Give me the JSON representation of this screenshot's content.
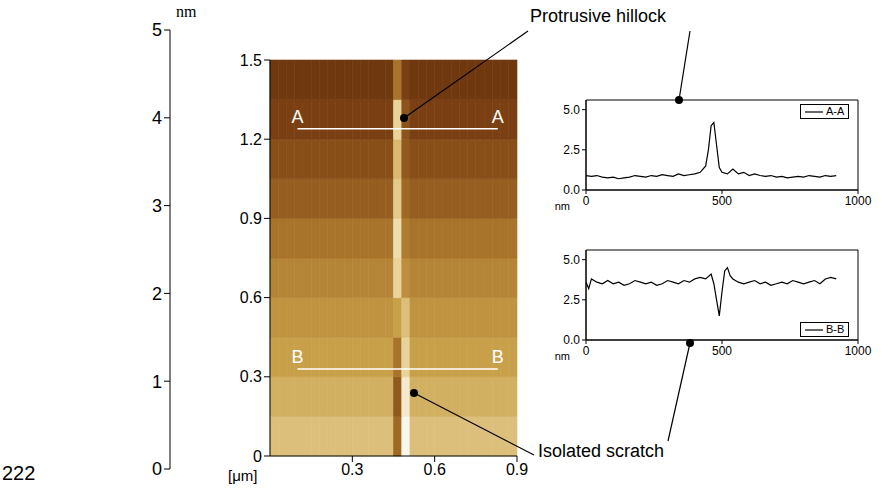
{
  "line_number": "222",
  "chart_data": [
    {
      "type": "heatmap",
      "xlabel": "[μm]",
      "xlim": [
        0,
        0.9
      ],
      "ylim": [
        0,
        1.5
      ],
      "xticks": [
        0.3,
        0.6,
        0.9
      ],
      "yticks": [
        0,
        0.3,
        0.6,
        0.9,
        1.2,
        1.5
      ],
      "x_edges": [
        0,
        0.03,
        0.06,
        0.09,
        0.12,
        0.15,
        0.18,
        0.21,
        0.24,
        0.27,
        0.3,
        0.33,
        0.36,
        0.39,
        0.42,
        0.45,
        0.48,
        0.51,
        0.54,
        0.57,
        0.6,
        0.63,
        0.66,
        0.69,
        0.72,
        0.75,
        0.78,
        0.81,
        0.84,
        0.87,
        0.9
      ],
      "y_edges": [
        0,
        0.15,
        0.3,
        0.45,
        0.6,
        0.75,
        0.9,
        1.05,
        1.2,
        1.35,
        1.5
      ],
      "cells": [
        [
          3.6,
          3.6,
          3.6,
          3.6,
          3.6,
          3.6,
          3.6,
          3.6,
          3.6,
          3.6,
          3.6,
          3.6,
          3.6,
          3.6,
          3.6,
          1.8,
          4.8,
          3.6,
          3.6,
          3.6,
          3.6,
          3.6,
          3.6,
          3.6,
          3.6,
          3.6,
          3.6,
          3.6,
          3.6,
          3.6
        ],
        [
          3.3,
          3.3,
          3.3,
          3.3,
          3.3,
          3.3,
          3.3,
          3.3,
          3.3,
          3.3,
          3.3,
          3.3,
          3.3,
          3.3,
          3.3,
          1.5,
          4.5,
          3.3,
          3.3,
          3.3,
          3.3,
          3.3,
          3.3,
          3.3,
          3.3,
          3.3,
          3.3,
          3.3,
          3.3,
          3.3
        ],
        [
          3.0,
          3.0,
          3.0,
          3.0,
          3.0,
          3.0,
          3.0,
          3.0,
          3.0,
          3.0,
          3.0,
          3.0,
          3.0,
          3.0,
          3.0,
          2.0,
          4.0,
          3.0,
          3.0,
          3.0,
          3.0,
          3.0,
          3.0,
          3.0,
          3.0,
          3.0,
          3.0,
          3.0,
          3.0,
          3.0
        ],
        [
          2.7,
          2.7,
          2.7,
          2.7,
          2.7,
          2.7,
          2.7,
          2.7,
          2.7,
          2.7,
          2.7,
          2.7,
          2.7,
          2.7,
          2.7,
          3.0,
          3.6,
          2.7,
          2.7,
          2.7,
          2.7,
          2.7,
          2.7,
          2.7,
          2.7,
          2.7,
          2.7,
          2.7,
          2.7,
          2.7
        ],
        [
          2.4,
          2.4,
          2.4,
          2.4,
          2.4,
          2.4,
          2.4,
          2.4,
          2.4,
          2.4,
          2.4,
          2.4,
          2.4,
          2.4,
          2.4,
          4.0,
          2.6,
          2.4,
          2.4,
          2.4,
          2.4,
          2.4,
          2.4,
          2.4,
          2.4,
          2.4,
          2.4,
          2.4,
          2.4,
          2.4
        ],
        [
          2.0,
          2.0,
          2.0,
          2.0,
          2.0,
          2.0,
          2.0,
          2.0,
          2.0,
          2.0,
          2.0,
          2.0,
          2.0,
          2.0,
          2.0,
          4.2,
          2.2,
          2.0,
          2.0,
          2.0,
          2.0,
          2.0,
          2.0,
          2.0,
          2.0,
          2.0,
          2.0,
          2.0,
          2.0,
          2.0
        ],
        [
          1.6,
          1.6,
          1.6,
          1.6,
          1.6,
          1.6,
          1.6,
          1.6,
          1.6,
          1.6,
          1.6,
          1.6,
          1.6,
          1.6,
          1.6,
          3.8,
          1.8,
          1.6,
          1.6,
          1.6,
          1.6,
          1.6,
          1.6,
          1.6,
          1.6,
          1.6,
          1.6,
          1.6,
          1.6,
          1.6
        ],
        [
          1.3,
          1.3,
          1.3,
          1.3,
          1.3,
          1.3,
          1.3,
          1.3,
          1.3,
          1.3,
          1.3,
          1.3,
          1.3,
          1.3,
          1.3,
          3.5,
          1.5,
          1.3,
          1.3,
          1.3,
          1.3,
          1.3,
          1.3,
          1.3,
          1.3,
          1.3,
          1.3,
          1.3,
          1.3,
          1.3
        ],
        [
          1.0,
          1.0,
          1.0,
          1.0,
          1.0,
          1.0,
          1.0,
          1.0,
          1.0,
          1.0,
          1.0,
          1.0,
          1.0,
          1.0,
          1.0,
          4.0,
          1.4,
          1.0,
          1.0,
          1.0,
          1.0,
          1.0,
          1.0,
          1.0,
          1.0,
          1.0,
          1.0,
          1.0,
          1.0,
          1.0
        ],
        [
          0.8,
          0.8,
          0.8,
          0.8,
          0.8,
          0.8,
          0.8,
          0.8,
          0.8,
          0.8,
          0.8,
          0.8,
          0.8,
          0.8,
          0.8,
          2.0,
          1.0,
          0.8,
          0.8,
          0.8,
          0.8,
          0.8,
          0.8,
          0.8,
          0.8,
          0.8,
          0.8,
          0.8,
          0.8,
          0.8
        ]
      ],
      "colorbar": {
        "label": "nm",
        "range": [
          0,
          5
        ],
        "ticks": [
          0,
          1,
          2,
          3,
          4,
          5
        ]
      },
      "lines": [
        {
          "label": "A",
          "y": 1.24,
          "x": [
            0.1,
            0.83
          ]
        },
        {
          "label": "B",
          "y": 0.33,
          "x": [
            0.1,
            0.83
          ]
        }
      ],
      "annotations": [
        {
          "text": "Protrusive hillock"
        },
        {
          "text": "Isolated scratch"
        }
      ]
    },
    {
      "type": "line",
      "xlabel": "nm",
      "xlim": [
        0,
        1000
      ],
      "ylim": [
        0,
        5.6
      ],
      "xticks": [
        0,
        500,
        1000
      ],
      "yticks": [
        {
          "value": 0,
          "label": "0.0"
        },
        {
          "value": 2.5,
          "label": "2.5"
        },
        {
          "value": 5,
          "label": "5.0"
        }
      ],
      "legend": "upper right",
      "x": [
        0,
        20,
        40,
        60,
        80,
        100,
        120,
        140,
        160,
        180,
        200,
        220,
        240,
        260,
        280,
        300,
        320,
        340,
        360,
        380,
        400,
        420,
        440,
        450,
        460,
        470,
        480,
        490,
        500,
        520,
        540,
        560,
        580,
        600,
        620,
        640,
        660,
        680,
        700,
        720,
        740,
        760,
        780,
        800,
        820,
        840,
        860,
        880,
        900,
        920
      ],
      "series": [
        {
          "name": "A-A",
          "color": "#000000",
          "values": [
            0.9,
            0.85,
            0.9,
            0.8,
            0.75,
            0.8,
            0.7,
            0.75,
            0.8,
            0.9,
            0.85,
            0.8,
            0.9,
            0.85,
            0.95,
            0.9,
            0.85,
            1.0,
            0.9,
            0.95,
            1.0,
            1.1,
            1.5,
            2.5,
            4.0,
            4.2,
            2.8,
            1.4,
            1.1,
            1.0,
            1.3,
            1.0,
            1.1,
            0.9,
            1.0,
            0.9,
            0.85,
            0.9,
            0.8,
            0.85,
            0.75,
            0.8,
            0.85,
            0.8,
            0.9,
            0.85,
            0.8,
            0.9,
            0.85,
            0.9
          ]
        }
      ]
    },
    {
      "type": "line",
      "xlabel": "nm",
      "xlim": [
        0,
        1000
      ],
      "ylim": [
        0,
        5.6
      ],
      "xticks": [
        0,
        500,
        1000
      ],
      "yticks": [
        {
          "value": 0,
          "label": "0.0"
        },
        {
          "value": 2.5,
          "label": "2.5"
        },
        {
          "value": 5,
          "label": "5.0"
        }
      ],
      "legend": "lower right",
      "x": [
        0,
        10,
        20,
        40,
        60,
        80,
        100,
        120,
        140,
        160,
        180,
        200,
        220,
        240,
        260,
        280,
        300,
        320,
        340,
        360,
        380,
        400,
        420,
        440,
        460,
        470,
        480,
        490,
        500,
        510,
        520,
        530,
        540,
        560,
        580,
        600,
        620,
        640,
        660,
        680,
        700,
        720,
        740,
        760,
        780,
        800,
        820,
        840,
        860,
        880,
        900,
        920
      ],
      "series": [
        {
          "name": "B-B",
          "color": "#000000",
          "values": [
            3.6,
            3.2,
            3.8,
            3.6,
            3.5,
            3.7,
            3.5,
            3.6,
            3.4,
            3.5,
            3.7,
            3.6,
            3.5,
            3.6,
            3.4,
            3.5,
            3.7,
            3.6,
            3.5,
            3.7,
            3.6,
            3.8,
            3.9,
            3.8,
            4.1,
            3.5,
            2.5,
            1.5,
            3.0,
            4.3,
            4.5,
            4.0,
            3.8,
            3.6,
            3.5,
            3.6,
            3.7,
            3.5,
            3.6,
            3.4,
            3.5,
            3.6,
            3.5,
            3.7,
            3.6,
            3.5,
            3.6,
            3.7,
            3.5,
            3.8,
            3.9,
            3.8
          ]
        }
      ]
    }
  ]
}
